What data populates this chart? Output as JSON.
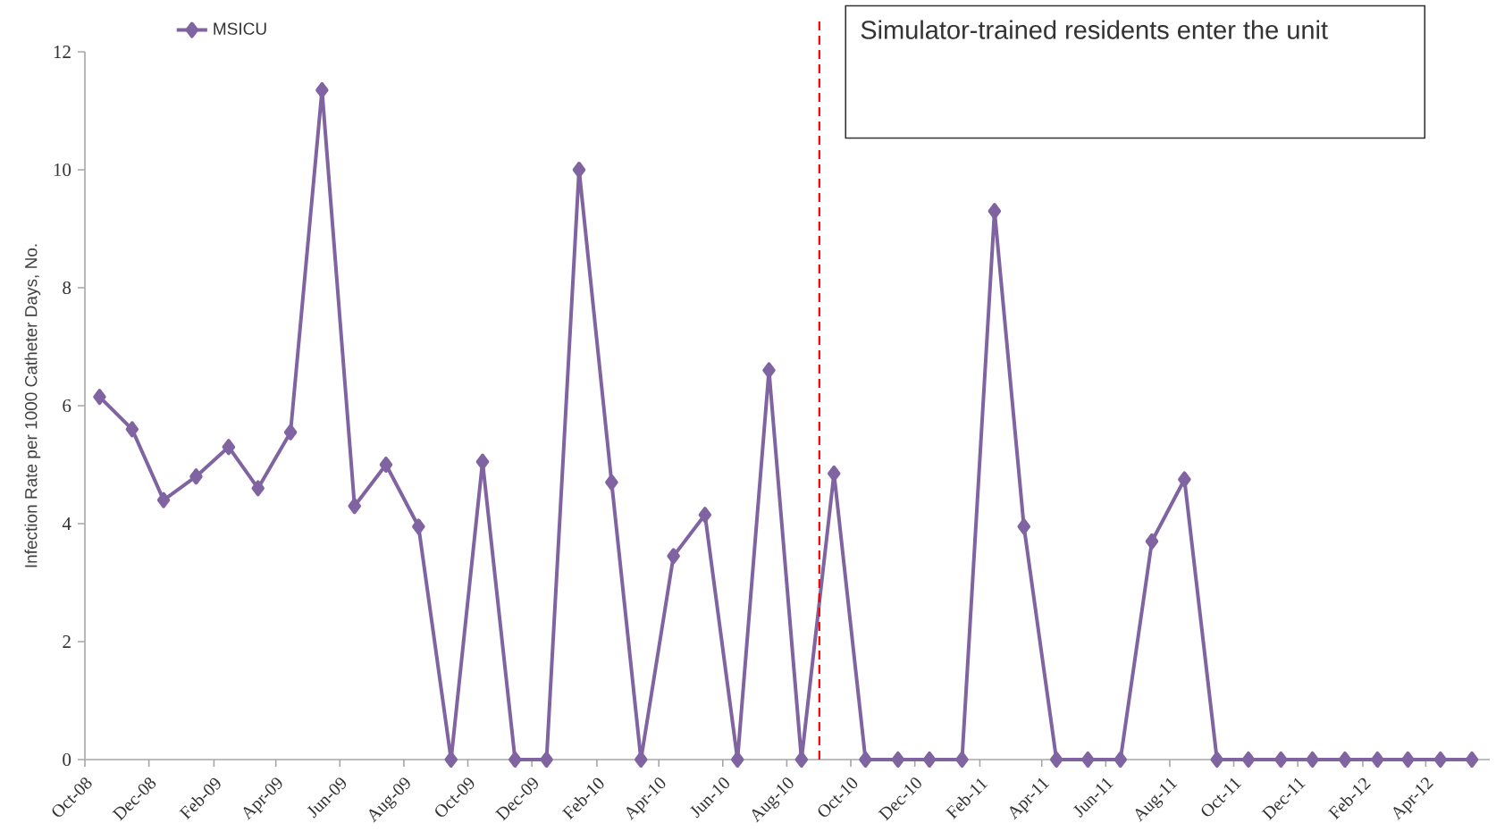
{
  "chart_data": {
    "type": "line",
    "ylabel": "Infection Rate per 1000 Catheter Days, No.",
    "x": [
      "2008-10-15",
      "2008-11-15",
      "2008-12-15",
      "2009-01-15",
      "2009-02-15",
      "2009-03-15",
      "2009-04-15",
      "2009-05-15",
      "2009-06-15",
      "2009-07-15",
      "2009-08-15",
      "2009-09-15",
      "2009-10-15",
      "2009-11-15",
      "2009-12-15",
      "2010-01-15",
      "2010-02-15",
      "2010-03-15",
      "2010-04-15",
      "2010-05-15",
      "2010-06-15",
      "2010-07-15",
      "2010-08-15",
      "2010-09-15",
      "2010-10-15",
      "2010-11-15",
      "2010-12-15",
      "2011-01-15",
      "2011-02-15",
      "2011-03-15",
      "2011-04-15",
      "2011-05-15",
      "2011-06-15",
      "2011-07-15",
      "2011-08-15",
      "2011-09-15",
      "2011-10-15",
      "2011-11-15",
      "2011-12-15",
      "2012-01-15",
      "2012-02-15",
      "2012-03-15",
      "2012-04-15",
      "2012-05-15"
    ],
    "series": [
      {
        "name": "MSICU",
        "color": "#8064a2",
        "values": [
          6.15,
          5.6,
          4.4,
          4.8,
          5.3,
          4.6,
          5.55,
          11.35,
          4.3,
          5.0,
          3.95,
          0,
          5.05,
          0,
          0,
          10.0,
          4.7,
          0,
          3.45,
          4.15,
          0,
          6.6,
          0,
          4.85,
          0,
          0,
          0,
          0,
          9.3,
          3.95,
          0,
          0,
          0,
          3.7,
          4.75,
          0,
          0,
          0,
          0,
          0,
          0,
          0,
          0,
          0
        ]
      }
    ],
    "xlim": [
      "2008-10-01",
      "2012-06-01"
    ],
    "xticks": [
      {
        "value": "2008-10-01",
        "label": "Oct-08"
      },
      {
        "value": "2008-12-01",
        "label": "Dec-08"
      },
      {
        "value": "2009-02-01",
        "label": "Feb-09"
      },
      {
        "value": "2009-04-01",
        "label": "Apr-09"
      },
      {
        "value": "2009-06-01",
        "label": "Jun-09"
      },
      {
        "value": "2009-08-01",
        "label": "Aug-09"
      },
      {
        "value": "2009-10-01",
        "label": "Oct-09"
      },
      {
        "value": "2009-12-01",
        "label": "Dec-09"
      },
      {
        "value": "2010-02-01",
        "label": "Feb-10"
      },
      {
        "value": "2010-04-01",
        "label": "Apr-10"
      },
      {
        "value": "2010-06-01",
        "label": "Jun-10"
      },
      {
        "value": "2010-08-01",
        "label": "Aug-10"
      },
      {
        "value": "2010-10-01",
        "label": "Oct-10"
      },
      {
        "value": "2010-12-01",
        "label": "Dec-10"
      },
      {
        "value": "2011-02-01",
        "label": "Feb-11"
      },
      {
        "value": "2011-04-01",
        "label": "Apr-11"
      },
      {
        "value": "2011-06-01",
        "label": "Jun-11"
      },
      {
        "value": "2011-08-01",
        "label": "Aug-11"
      },
      {
        "value": "2011-10-01",
        "label": "Oct-11"
      },
      {
        "value": "2011-12-01",
        "label": "Dec-11"
      },
      {
        "value": "2012-02-01",
        "label": "Feb-12"
      },
      {
        "value": "2012-04-01",
        "label": "Apr-12"
      }
    ],
    "ylim": [
      0,
      12
    ],
    "yticks": [
      0,
      2,
      4,
      6,
      8,
      10,
      12
    ],
    "ref_lines": [
      {
        "axis": "x",
        "value": "2010-09-01",
        "label": "Simulator-trained residents enter the unit",
        "color": "#ff0000",
        "line_style": "dashed"
      }
    ],
    "legend": "top left",
    "marker": "diamond",
    "line_style": "solid",
    "grid": false
  }
}
